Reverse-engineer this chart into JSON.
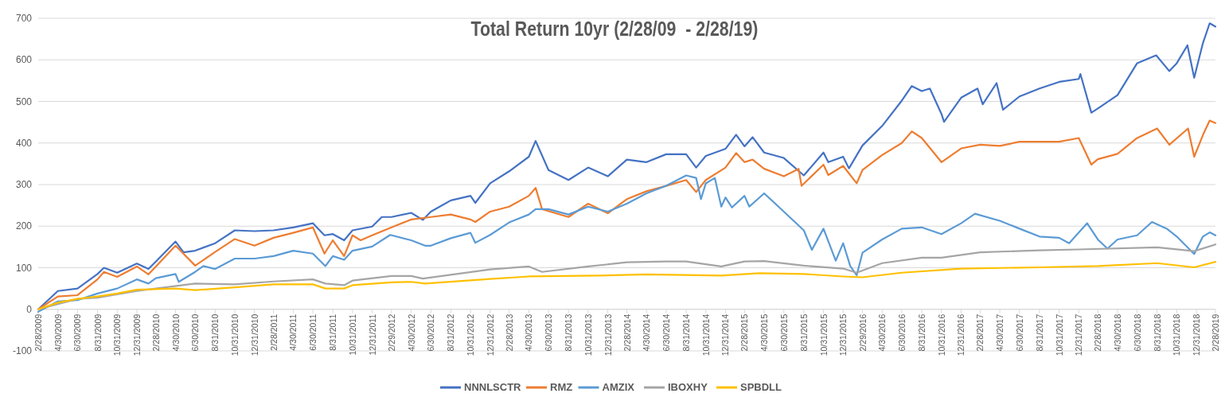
{
  "chart_data": {
    "type": "line",
    "title": "Total Return 10yr (2/28/09  - 2/28/19)",
    "legend": "bottom",
    "grid": "y",
    "ylim": [
      -100,
      700
    ],
    "yticks": [
      -100,
      0,
      100,
      200,
      300,
      400,
      500,
      600,
      700
    ],
    "xlim": [
      "2009-02-28",
      "2019-02-28"
    ],
    "xticks": [
      {
        "value": "2009-02-28",
        "label": "2/28/2009"
      },
      {
        "value": "2009-04-30",
        "label": "4/30/2009"
      },
      {
        "value": "2009-06-30",
        "label": "6/30/2009"
      },
      {
        "value": "2009-08-31",
        "label": "8/31/2009"
      },
      {
        "value": "2009-10-31",
        "label": "10/31/2009"
      },
      {
        "value": "2009-12-31",
        "label": "12/31/2009"
      },
      {
        "value": "2010-02-28",
        "label": "2/28/2010"
      },
      {
        "value": "2010-04-30",
        "label": "4/30/2010"
      },
      {
        "value": "2010-06-30",
        "label": "6/30/2010"
      },
      {
        "value": "2010-08-31",
        "label": "8/31/2010"
      },
      {
        "value": "2010-10-31",
        "label": "10/31/2010"
      },
      {
        "value": "2010-12-31",
        "label": "12/31/2010"
      },
      {
        "value": "2011-02-28",
        "label": "2/28/2011"
      },
      {
        "value": "2011-04-30",
        "label": "4/30/2011"
      },
      {
        "value": "2011-06-30",
        "label": "6/30/2011"
      },
      {
        "value": "2011-08-31",
        "label": "8/31/2011"
      },
      {
        "value": "2011-10-31",
        "label": "10/31/2011"
      },
      {
        "value": "2011-12-31",
        "label": "12/31/2011"
      },
      {
        "value": "2012-02-29",
        "label": "2/29/2012"
      },
      {
        "value": "2012-04-30",
        "label": "4/30/2012"
      },
      {
        "value": "2012-06-30",
        "label": "6/30/2012"
      },
      {
        "value": "2012-08-31",
        "label": "8/31/2012"
      },
      {
        "value": "2012-10-31",
        "label": "10/31/2012"
      },
      {
        "value": "2012-12-31",
        "label": "12/31/2012"
      },
      {
        "value": "2013-02-28",
        "label": "2/28/2013"
      },
      {
        "value": "2013-04-30",
        "label": "4/30/2013"
      },
      {
        "value": "2013-06-30",
        "label": "6/30/2013"
      },
      {
        "value": "2013-08-31",
        "label": "8/31/2013"
      },
      {
        "value": "2013-10-31",
        "label": "10/31/2013"
      },
      {
        "value": "2013-12-31",
        "label": "12/31/2013"
      },
      {
        "value": "2014-02-28",
        "label": "2/28/2014"
      },
      {
        "value": "2014-04-30",
        "label": "4/30/2014"
      },
      {
        "value": "2014-06-30",
        "label": "6/30/2014"
      },
      {
        "value": "2014-08-31",
        "label": "8/31/2014"
      },
      {
        "value": "2014-10-31",
        "label": "10/31/2014"
      },
      {
        "value": "2014-12-31",
        "label": "12/31/2014"
      },
      {
        "value": "2015-02-28",
        "label": "2/28/2015"
      },
      {
        "value": "2015-04-30",
        "label": "4/30/2015"
      },
      {
        "value": "2015-06-30",
        "label": "6/30/2015"
      },
      {
        "value": "2015-08-31",
        "label": "8/31/2015"
      },
      {
        "value": "2015-10-31",
        "label": "10/31/2015"
      },
      {
        "value": "2015-12-31",
        "label": "12/31/2015"
      },
      {
        "value": "2016-02-29",
        "label": "2/29/2016"
      },
      {
        "value": "2016-04-30",
        "label": "4/30/2016"
      },
      {
        "value": "2016-06-30",
        "label": "6/30/2016"
      },
      {
        "value": "2016-08-31",
        "label": "8/31/2016"
      },
      {
        "value": "2016-10-31",
        "label": "10/31/2016"
      },
      {
        "value": "2016-12-31",
        "label": "12/31/2016"
      },
      {
        "value": "2017-02-28",
        "label": "2/28/2017"
      },
      {
        "value": "2017-04-30",
        "label": "4/30/2017"
      },
      {
        "value": "2017-06-30",
        "label": "6/30/2017"
      },
      {
        "value": "2017-08-31",
        "label": "8/31/2017"
      },
      {
        "value": "2017-10-31",
        "label": "10/31/2017"
      },
      {
        "value": "2017-12-31",
        "label": "12/31/2017"
      },
      {
        "value": "2018-02-28",
        "label": "2/28/2018"
      },
      {
        "value": "2018-04-30",
        "label": "4/30/2018"
      },
      {
        "value": "2018-06-30",
        "label": "6/30/2018"
      },
      {
        "value": "2018-08-31",
        "label": "8/31/2018"
      },
      {
        "value": "2018-10-31",
        "label": "10/31/2018"
      },
      {
        "value": "2018-12-31",
        "label": "12/31/2018"
      },
      {
        "value": "2019-02-28",
        "label": "2/28/2019"
      }
    ],
    "series": [
      {
        "name": "NNNLSCTR",
        "color": "#4472c4",
        "x": [
          "2009-02-28",
          "2009-04-30",
          "2009-06-30",
          "2009-08-31",
          "2009-09-20",
          "2009-10-31",
          "2009-12-31",
          "2010-02-05",
          "2010-02-28",
          "2010-04-30",
          "2010-05-25",
          "2010-06-30",
          "2010-08-31",
          "2010-10-31",
          "2010-12-31",
          "2011-02-28",
          "2011-04-30",
          "2011-06-30",
          "2011-08-05",
          "2011-08-31",
          "2011-10-05",
          "2011-10-31",
          "2011-12-31",
          "2012-01-30",
          "2012-02-29",
          "2012-04-30",
          "2012-06-05",
          "2012-06-30",
          "2012-08-31",
          "2012-10-31",
          "2012-11-15",
          "2012-12-31",
          "2013-02-28",
          "2013-04-30",
          "2013-05-21",
          "2013-06-30",
          "2013-08-31",
          "2013-10-31",
          "2013-12-31",
          "2014-02-28",
          "2014-04-30",
          "2014-06-30",
          "2014-08-31",
          "2014-10-01",
          "2014-10-31",
          "2014-12-31",
          "2015-02-02",
          "2015-02-28",
          "2015-03-25",
          "2015-04-30",
          "2015-06-30",
          "2015-08-31",
          "2015-10-31",
          "2015-11-15",
          "2015-12-31",
          "2016-01-18",
          "2016-02-29",
          "2016-04-30",
          "2016-06-30",
          "2016-07-31",
          "2016-08-31",
          "2016-09-25",
          "2016-10-31",
          "2016-11-08",
          "2016-12-31",
          "2017-02-20",
          "2017-03-08",
          "2017-04-20",
          "2017-05-10",
          "2017-06-30",
          "2017-08-31",
          "2017-10-31",
          "2017-12-31",
          "2018-01-05",
          "2018-02-08",
          "2018-02-28",
          "2018-04-30",
          "2018-06-30",
          "2018-08-28",
          "2018-10-08",
          "2018-10-31",
          "2018-12-03",
          "2018-12-24",
          "2019-01-20",
          "2019-02-10",
          "2019-02-28"
        ],
        "values": [
          0,
          44,
          50,
          85,
          100,
          88,
          110,
          97,
          115,
          163,
          137,
          141,
          159,
          190,
          188,
          190,
          197,
          207,
          178,
          181,
          166,
          190,
          199,
          222,
          222,
          232,
          215,
          235,
          262,
          273,
          256,
          303,
          332,
          367,
          405,
          335,
          311,
          341,
          320,
          360,
          354,
          373,
          373,
          341,
          369,
          386,
          420,
          392,
          414,
          377,
          364,
          322,
          377,
          354,
          367,
          339,
          394,
          441,
          502,
          537,
          525,
          531,
          470,
          451,
          509,
          531,
          493,
          544,
          480,
          512,
          531,
          547,
          554,
          566,
          473,
          483,
          515,
          592,
          611,
          573,
          592,
          635,
          557,
          640,
          688,
          680
        ]
      },
      {
        "name": "RMZ",
        "color": "#ed7d31",
        "x": [
          "2009-02-28",
          "2009-04-30",
          "2009-06-30",
          "2009-08-31",
          "2009-09-20",
          "2009-10-31",
          "2009-12-31",
          "2010-02-05",
          "2010-02-28",
          "2010-04-30",
          "2010-06-30",
          "2010-08-31",
          "2010-10-31",
          "2010-12-31",
          "2011-02-28",
          "2011-04-30",
          "2011-06-30",
          "2011-08-05",
          "2011-08-31",
          "2011-10-05",
          "2011-10-31",
          "2011-11-25",
          "2011-12-31",
          "2012-02-29",
          "2012-04-30",
          "2012-06-30",
          "2012-08-31",
          "2012-10-31",
          "2012-11-15",
          "2012-12-31",
          "2013-02-28",
          "2013-04-30",
          "2013-05-21",
          "2013-06-10",
          "2013-08-31",
          "2013-10-31",
          "2013-12-31",
          "2014-02-28",
          "2014-04-30",
          "2014-06-30",
          "2014-08-31",
          "2014-10-01",
          "2014-10-31",
          "2014-12-31",
          "2015-02-02",
          "2015-02-28",
          "2015-03-25",
          "2015-04-30",
          "2015-06-30",
          "2015-08-15",
          "2015-08-24",
          "2015-10-31",
          "2015-11-15",
          "2015-12-31",
          "2016-02-11",
          "2016-02-29",
          "2016-04-30",
          "2016-06-30",
          "2016-07-31",
          "2016-08-31",
          "2016-10-31",
          "2016-12-31",
          "2017-02-28",
          "2017-04-30",
          "2017-06-30",
          "2017-08-31",
          "2017-10-31",
          "2017-12-31",
          "2018-02-08",
          "2018-02-28",
          "2018-04-30",
          "2018-06-30",
          "2018-08-31",
          "2018-10-08",
          "2018-12-05",
          "2018-12-24",
          "2019-01-20",
          "2019-02-10",
          "2019-02-28"
        ],
        "values": [
          0,
          31,
          34,
          72,
          90,
          78,
          103,
          84,
          103,
          153,
          105,
          138,
          169,
          153,
          172,
          184,
          197,
          134,
          166,
          128,
          178,
          166,
          178,
          197,
          216,
          222,
          228,
          216,
          210,
          235,
          247,
          273,
          292,
          241,
          222,
          254,
          231,
          265,
          284,
          297,
          311,
          282,
          311,
          341,
          376,
          354,
          360,
          338,
          320,
          338,
          297,
          348,
          323,
          345,
          303,
          335,
          371,
          400,
          428,
          412,
          354,
          387,
          396,
          393,
          403,
          403,
          403,
          412,
          348,
          361,
          374,
          412,
          435,
          396,
          435,
          367,
          419,
          454,
          448
        ]
      },
      {
        "name": "AMZIX",
        "color": "#5b9bd5",
        "x": [
          "2009-02-28",
          "2009-04-30",
          "2009-06-30",
          "2009-08-31",
          "2009-10-31",
          "2009-12-31",
          "2010-02-05",
          "2010-02-28",
          "2010-04-30",
          "2010-05-10",
          "2010-06-30",
          "2010-07-25",
          "2010-08-31",
          "2010-10-31",
          "2010-12-31",
          "2011-02-28",
          "2011-04-30",
          "2011-06-30",
          "2011-08-08",
          "2011-08-31",
          "2011-10-05",
          "2011-10-31",
          "2011-12-31",
          "2012-02-25",
          "2012-04-30",
          "2012-06-12",
          "2012-06-30",
          "2012-08-31",
          "2012-10-31",
          "2012-11-15",
          "2012-12-31",
          "2013-02-28",
          "2013-04-30",
          "2013-05-21",
          "2013-06-30",
          "2013-08-31",
          "2013-10-31",
          "2013-12-31",
          "2014-02-28",
          "2014-04-30",
          "2014-06-30",
          "2014-08-31",
          "2014-10-01",
          "2014-10-16",
          "2014-10-31",
          "2014-11-28",
          "2014-12-18",
          "2014-12-31",
          "2015-01-20",
          "2015-02-28",
          "2015-03-15",
          "2015-04-30",
          "2015-06-30",
          "2015-08-31",
          "2015-09-25",
          "2015-10-31",
          "2015-12-08",
          "2015-12-31",
          "2016-01-22",
          "2016-02-11",
          "2016-02-29",
          "2016-04-30",
          "2016-06-30",
          "2016-08-31",
          "2016-10-31",
          "2016-12-31",
          "2017-02-12",
          "2017-04-30",
          "2017-06-30",
          "2017-08-31",
          "2017-10-31",
          "2017-12-01",
          "2018-01-26",
          "2018-02-28",
          "2018-03-30",
          "2018-04-30",
          "2018-06-30",
          "2018-08-15",
          "2018-09-30",
          "2018-10-31",
          "2018-12-24",
          "2019-01-20",
          "2019-02-10",
          "2019-02-28"
        ],
        "values": [
          -6,
          19,
          22,
          38,
          50,
          72,
          62,
          75,
          85,
          66,
          90,
          104,
          97,
          122,
          122,
          128,
          141,
          134,
          104,
          128,
          119,
          141,
          151,
          179,
          166,
          153,
          153,
          171,
          184,
          160,
          179,
          209,
          228,
          241,
          241,
          228,
          247,
          235,
          254,
          279,
          297,
          322,
          316,
          265,
          303,
          316,
          247,
          269,
          245,
          273,
          247,
          279,
          235,
          190,
          143,
          194,
          117,
          159,
          104,
          82,
          136,
          168,
          194,
          197,
          181,
          207,
          230,
          213,
          194,
          175,
          172,
          159,
          207,
          168,
          146,
          168,
          178,
          210,
          194,
          175,
          133,
          175,
          185,
          178
        ]
      },
      {
        "name": "IBOXHY",
        "color": "#a5a5a5",
        "x": [
          "2009-02-28",
          "2009-06-30",
          "2009-08-31",
          "2009-12-31",
          "2010-02-28",
          "2010-06-30",
          "2010-10-31",
          "2011-02-28",
          "2011-06-30",
          "2011-08-08",
          "2011-10-05",
          "2011-10-31",
          "2012-02-29",
          "2012-04-30",
          "2012-06-05",
          "2012-12-31",
          "2013-04-30",
          "2013-06-10",
          "2013-10-31",
          "2014-02-28",
          "2014-06-30",
          "2014-08-31",
          "2014-12-18",
          "2015-02-28",
          "2015-04-30",
          "2015-08-31",
          "2015-12-31",
          "2016-02-11",
          "2016-04-30",
          "2016-08-31",
          "2016-10-31",
          "2017-02-28",
          "2017-08-31",
          "2017-12-31",
          "2018-08-31",
          "2018-12-24",
          "2019-02-28"
        ],
        "values": [
          0,
          25,
          28,
          44,
          50,
          62,
          60,
          67,
          72,
          62,
          58,
          69,
          80,
          80,
          74,
          96,
          103,
          90,
          103,
          113,
          115,
          115,
          103,
          115,
          116,
          105,
          98,
          88,
          111,
          124,
          124,
          137,
          142,
          144,
          149,
          140,
          156
        ]
      },
      {
        "name": "SPBDLL",
        "color": "#ffc000",
        "x": [
          "2009-02-28",
          "2009-04-30",
          "2009-06-30",
          "2009-08-31",
          "2009-10-31",
          "2009-12-31",
          "2010-04-30",
          "2010-06-30",
          "2010-10-31",
          "2011-02-28",
          "2011-06-30",
          "2011-08-08",
          "2011-10-05",
          "2011-10-31",
          "2012-02-29",
          "2012-04-30",
          "2012-06-12",
          "2012-12-31",
          "2013-04-30",
          "2013-12-01",
          "2014-04-30",
          "2014-12-18",
          "2015-04-15",
          "2015-08-31",
          "2015-12-31",
          "2016-02-29",
          "2016-06-30",
          "2016-12-31",
          "2017-08-31",
          "2018-02-28",
          "2018-08-31",
          "2018-12-24",
          "2019-02-28"
        ],
        "values": [
          0,
          16,
          25,
          31,
          38,
          47,
          50,
          46,
          53,
          60,
          60,
          50,
          50,
          58,
          65,
          66,
          62,
          73,
          79,
          81,
          84,
          81,
          87,
          85,
          79,
          77,
          88,
          98,
          101,
          104,
          111,
          101,
          114
        ]
      }
    ]
  }
}
